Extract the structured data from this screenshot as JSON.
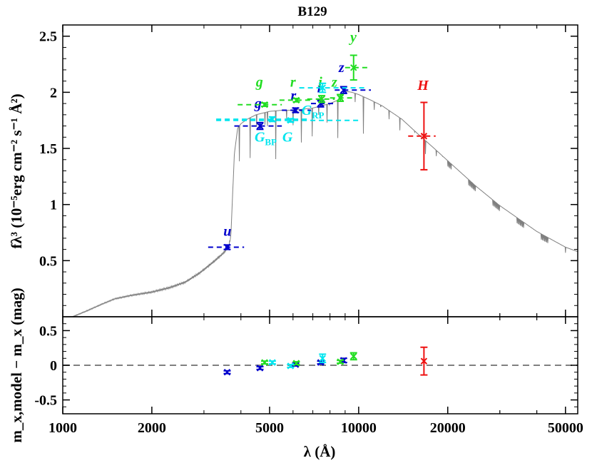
{
  "chart_data": [
    {
      "type": "line",
      "panel": "sed",
      "title": "B129",
      "xscale": "log",
      "xlim": [
        1000,
        55000
      ],
      "ylim": [
        0,
        2.6
      ],
      "ylabel": "fλ³ (10⁻⁵erg cm⁻² s⁻¹ Å²)",
      "yticks": [
        0.5,
        1,
        1.5,
        2,
        2.5
      ],
      "ytick_labels": [
        "0.5",
        "1",
        "1.5",
        "2",
        "2.5"
      ],
      "colors": {
        "model": "#808080",
        "SDSS": "#0000cc",
        "PanSTARRS": "#22dd22",
        "Gaia": "#00e5ee",
        "2MASS": "#ee1111"
      },
      "model_spectrum": {
        "name": "model",
        "x": [
          1080,
          1200,
          1350,
          1500,
          1700,
          2000,
          2300,
          2600,
          2900,
          3200,
          3500,
          3640,
          3700,
          3800,
          3900,
          4000,
          4200,
          4500,
          5000,
          5500,
          6000,
          6500,
          7000,
          7500,
          8000,
          8500,
          9000,
          9500,
          10000,
          11000,
          12000,
          14000,
          16000,
          18000,
          20000,
          25000,
          30000,
          40000,
          50000,
          55000
        ],
        "y": [
          0.0,
          0.05,
          0.11,
          0.16,
          0.19,
          0.22,
          0.26,
          0.31,
          0.39,
          0.48,
          0.57,
          0.63,
          0.72,
          1.45,
          1.68,
          1.72,
          1.76,
          1.8,
          1.83,
          1.84,
          1.84,
          1.85,
          1.86,
          1.88,
          1.9,
          1.93,
          2.01,
          2.0,
          1.98,
          1.93,
          1.88,
          1.76,
          1.62,
          1.5,
          1.39,
          1.16,
          0.99,
          0.76,
          0.62,
          0.58
        ]
      },
      "photometry": [
        {
          "label": "u",
          "sub": "",
          "system": "SDSS",
          "x": 3594,
          "y": 0.62,
          "yerr": 0.02,
          "xerr": [
            3100,
            4100
          ],
          "model": null,
          "label_pos": [
            3600,
            0.72
          ]
        },
        {
          "label": "g",
          "sub": "",
          "system": "SDSS",
          "x": 4640,
          "y": 1.7,
          "yerr": 0.03,
          "xerr": [
            3800,
            5500
          ],
          "model": null,
          "label_pos": [
            4570,
            1.86
          ]
        },
        {
          "label": "r",
          "sub": "",
          "system": "SDSS",
          "x": 6122,
          "y": 1.84,
          "yerr": 0.02,
          "xerr": [
            5500,
            6900
          ],
          "model": null,
          "label_pos": [
            6020,
            1.93
          ]
        },
        {
          "label": "i",
          "sub": "",
          "system": "SDSS",
          "x": 7439,
          "y": 1.9,
          "yerr": 0.03,
          "xerr": [
            6900,
            8300
          ],
          "model": null,
          "label_pos": [
            7350,
            2.0
          ]
        },
        {
          "label": "z",
          "sub": "",
          "system": "SDSS",
          "x": 8897,
          "y": 2.02,
          "yerr": 0.03,
          "xerr": [
            8300,
            11000
          ],
          "model": null,
          "label_pos": [
            8750,
            2.18
          ]
        },
        {
          "label": "g",
          "sub": "",
          "system": "PanSTARRS",
          "x": 4810,
          "y": 1.89,
          "yerr": 0.015,
          "xerr": [
            3900,
            5500
          ],
          "model": null,
          "label_pos": [
            4620,
            2.05
          ]
        },
        {
          "label": "r",
          "sub": "",
          "system": "PanSTARRS",
          "x": 6156,
          "y": 1.93,
          "yerr": 0.015,
          "xerr": [
            5400,
            7000
          ],
          "model": null,
          "label_pos": [
            6000,
            2.05
          ]
        },
        {
          "label": "i",
          "sub": "",
          "system": "PanSTARRS",
          "x": 7503,
          "y": 1.94,
          "yerr": 0.03,
          "xerr": [
            6700,
            8300
          ],
          "model": null,
          "label_pos": [
            7420,
            2.05
          ]
        },
        {
          "label": "z",
          "sub": "",
          "system": "PanSTARRS",
          "x": 8668,
          "y": 1.95,
          "yerr": 0.03,
          "xerr": [
            8000,
            9500
          ],
          "model": null,
          "label_pos": [
            8280,
            2.05
          ]
        },
        {
          "label": "y",
          "sub": "",
          "system": "PanSTARRS",
          "x": 9613,
          "y": 2.22,
          "yerr": 0.11,
          "xerr": [
            9000,
            10700
          ],
          "model": null,
          "label_pos": [
            9600,
            2.45
          ]
        },
        {
          "label": "G",
          "sub": "BP",
          "system": "Gaia",
          "x": 5109,
          "y": 1.76,
          "yerr": 0.02,
          "xerr": [
            3300,
            6700
          ],
          "model": null,
          "label_pos": [
            4850,
            1.56
          ]
        },
        {
          "label": "G",
          "sub": "",
          "system": "Gaia",
          "x": 5886,
          "y": 1.75,
          "yerr": 0.015,
          "xerr": [
            3300,
            10000
          ],
          "model": null,
          "label_pos": [
            5750,
            1.56
          ]
        },
        {
          "label": "G",
          "sub": "RP",
          "system": "Gaia",
          "x": 7551,
          "y": 2.04,
          "yerr": 0.04,
          "xerr": [
            6300,
            10500
          ],
          "model": null,
          "label_pos": [
            7000,
            1.8
          ]
        },
        {
          "label": "H",
          "sub": "",
          "system": "2MASS",
          "x": 16620,
          "y": 1.61,
          "yerr": 0.3,
          "xerr": [
            14700,
            18200
          ],
          "model": null,
          "label_pos": [
            16500,
            2.02
          ]
        }
      ]
    },
    {
      "type": "scatter",
      "panel": "residuals",
      "xlabel": "λ (Å)",
      "ylabel": "m_x,model − m_x (mag)",
      "xscale": "log",
      "xlim": [
        1000,
        55000
      ],
      "ylim": [
        -0.7,
        0.7
      ],
      "xticks": [
        1000,
        2000,
        5000,
        10000,
        20000,
        50000
      ],
      "xtick_labels": [
        "1000",
        "2000",
        "5000",
        "10000",
        "20000",
        "50000"
      ],
      "yticks": [
        -0.5,
        0,
        0.5
      ],
      "ytick_labels": [
        "-0.5",
        "0",
        "0.5"
      ],
      "zero_line": 0,
      "points": [
        {
          "system": "SDSS",
          "x": 3594,
          "y": -0.1,
          "yerr": 0.02
        },
        {
          "system": "SDSS",
          "x": 4640,
          "y": -0.04,
          "yerr": 0.02
        },
        {
          "system": "SDSS",
          "x": 6122,
          "y": 0.01,
          "yerr": 0.02
        },
        {
          "system": "SDSS",
          "x": 7439,
          "y": 0.04,
          "yerr": 0.02
        },
        {
          "system": "SDSS",
          "x": 8897,
          "y": 0.07,
          "yerr": 0.03
        },
        {
          "system": "PanSTARRS",
          "x": 4810,
          "y": 0.04,
          "yerr": 0.02
        },
        {
          "system": "PanSTARRS",
          "x": 6156,
          "y": 0.03,
          "yerr": 0.02
        },
        {
          "system": "PanSTARRS",
          "x": 8668,
          "y": 0.05,
          "yerr": 0.02
        },
        {
          "system": "PanSTARRS",
          "x": 9613,
          "y": 0.13,
          "yerr": 0.05
        },
        {
          "system": "Gaia",
          "x": 5109,
          "y": 0.04,
          "yerr": 0.02
        },
        {
          "system": "Gaia",
          "x": 5886,
          "y": -0.01,
          "yerr": 0.02
        },
        {
          "system": "Gaia",
          "x": 7551,
          "y": 0.1,
          "yerr": 0.06
        },
        {
          "system": "2MASS",
          "x": 16620,
          "y": 0.06,
          "yerr": 0.2
        }
      ]
    }
  ]
}
